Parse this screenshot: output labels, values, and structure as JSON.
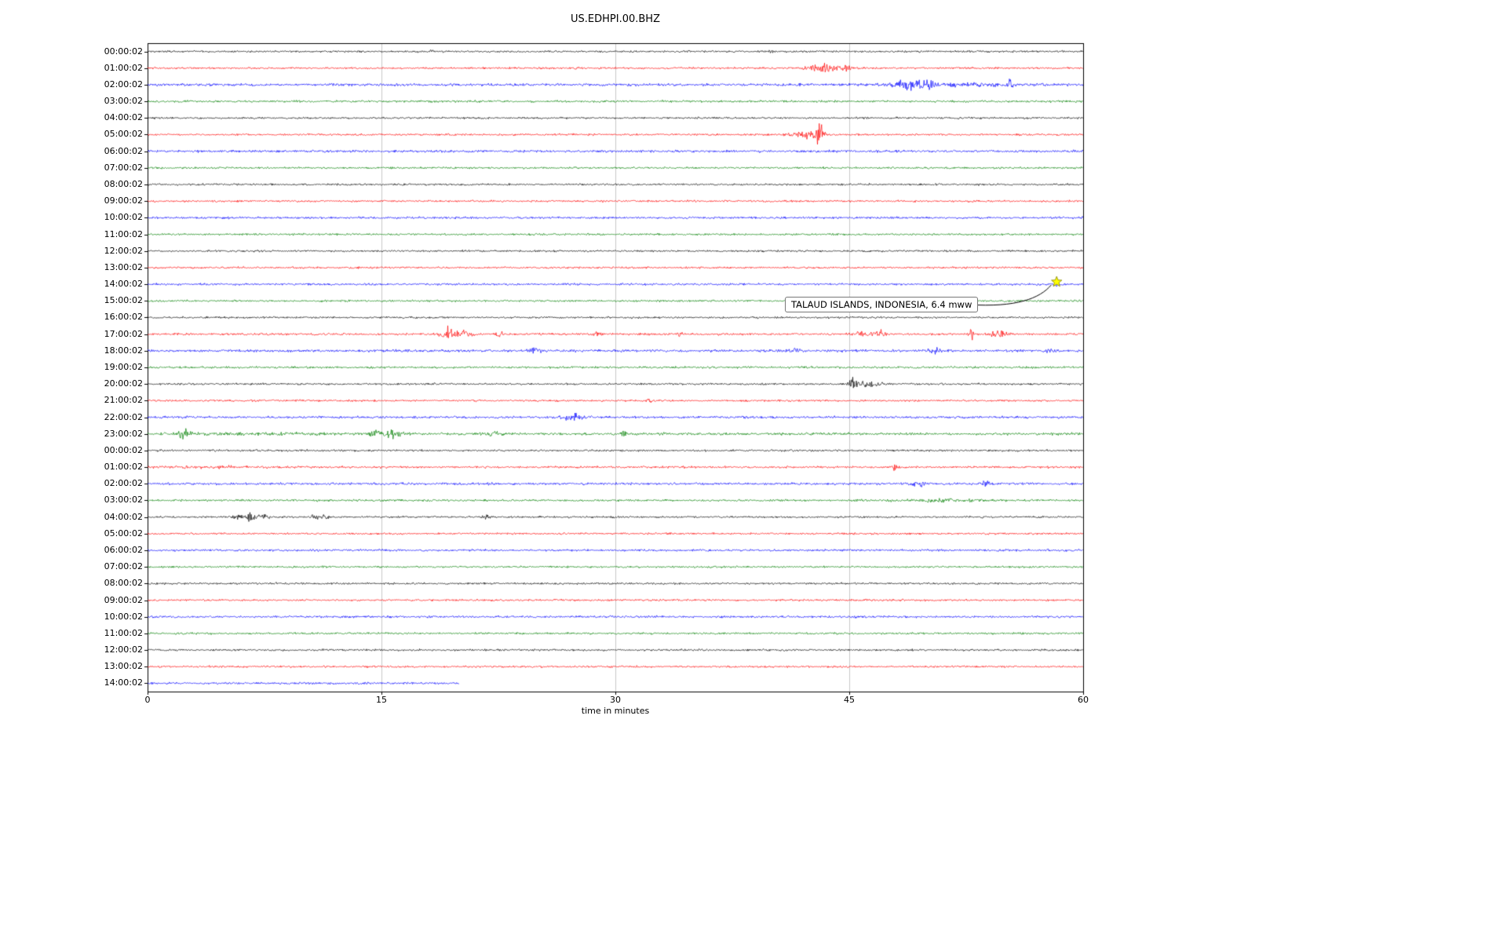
{
  "window": {
    "background": "#ffffff"
  },
  "chart_data": {
    "type": "line",
    "variant": "seismogram-dayplot",
    "title": "US.EDHPI.00.BHZ",
    "xlabel": "time in minutes",
    "xlim": [
      0,
      60
    ],
    "xticks": [
      0,
      15,
      30,
      45,
      60
    ],
    "grid_x": [
      15,
      30,
      45
    ],
    "grid_color": "#c8c8c8",
    "frame_color": "#000000",
    "color_cycle": [
      "#000000",
      "#ff0000",
      "#0000ff",
      "#008000"
    ],
    "annotation": {
      "text": "TALAUD ISLANDS, INDONESIA, 6.4 mww",
      "row_label": "14:00:02",
      "row_index": 14,
      "x_minutes": 58.3,
      "marker": "star-icon",
      "marker_color": "#ffff00",
      "marker_edge_color": "#808000"
    },
    "rows": [
      {
        "label": "00:00:02",
        "color": "#000000",
        "noise": 1.0,
        "events": [
          [
            18.2,
            0.15,
            2.5
          ],
          [
            40.0,
            0.12,
            1.8
          ]
        ]
      },
      {
        "label": "01:00:02",
        "color": "#ff0000",
        "noise": 1.0,
        "events": [
          [
            43.2,
            0.8,
            4.5
          ],
          [
            44.6,
            0.5,
            3.5
          ]
        ]
      },
      {
        "label": "02:00:02",
        "color": "#0000ff",
        "noise": 1.3,
        "events": [
          [
            48.9,
            0.9,
            4.0
          ],
          [
            50.0,
            0.4,
            2.5
          ],
          [
            52.0,
            4.0,
            0.8
          ],
          [
            55.3,
            0.15,
            5.5
          ]
        ]
      },
      {
        "label": "03:00:02",
        "color": "#008000",
        "noise": 1.1,
        "events": []
      },
      {
        "label": "04:00:02",
        "color": "#000000",
        "noise": 1.0,
        "events": []
      },
      {
        "label": "05:00:02",
        "color": "#ff0000",
        "noise": 1.0,
        "events": [
          [
            42.3,
            1.0,
            4.0
          ],
          [
            43.1,
            0.25,
            11.0
          ]
        ]
      },
      {
        "label": "06:00:02",
        "color": "#0000ff",
        "noise": 1.2,
        "events": []
      },
      {
        "label": "07:00:02",
        "color": "#008000",
        "noise": 1.0,
        "events": []
      },
      {
        "label": "08:00:02",
        "color": "#000000",
        "noise": 1.0,
        "events": []
      },
      {
        "label": "09:00:02",
        "color": "#ff0000",
        "noise": 1.0,
        "events": []
      },
      {
        "label": "10:00:02",
        "color": "#0000ff",
        "noise": 1.1,
        "events": []
      },
      {
        "label": "11:00:02",
        "color": "#008000",
        "noise": 1.0,
        "events": []
      },
      {
        "label": "12:00:02",
        "color": "#000000",
        "noise": 1.0,
        "events": []
      },
      {
        "label": "13:00:02",
        "color": "#ff0000",
        "noise": 1.0,
        "events": []
      },
      {
        "label": "14:00:02",
        "color": "#0000ff",
        "noise": 1.1,
        "events": [
          [
            58.3,
            0.3,
            1.8
          ]
        ]
      },
      {
        "label": "15:00:02",
        "color": "#008000",
        "noise": 1.0,
        "events": []
      },
      {
        "label": "16:00:02",
        "color": "#000000",
        "noise": 1.0,
        "events": []
      },
      {
        "label": "17:00:02",
        "color": "#ff0000",
        "noise": 1.1,
        "events": [
          [
            19.3,
            0.5,
            5.5
          ],
          [
            20.3,
            0.5,
            3.0
          ],
          [
            22.6,
            0.2,
            3.0
          ],
          [
            28.9,
            0.25,
            3.5
          ],
          [
            34.1,
            0.2,
            2.5
          ],
          [
            45.6,
            0.3,
            3.5
          ],
          [
            46.9,
            0.5,
            3.0
          ],
          [
            52.8,
            0.15,
            5.0
          ],
          [
            54.6,
            0.6,
            3.5
          ]
        ]
      },
      {
        "label": "18:00:02",
        "color": "#0000ff",
        "noise": 1.3,
        "events": [
          [
            24.8,
            0.4,
            2.2
          ],
          [
            41.5,
            0.4,
            1.8
          ],
          [
            50.6,
            0.5,
            2.0
          ],
          [
            57.9,
            0.15,
            4.5
          ]
        ]
      },
      {
        "label": "19:00:02",
        "color": "#008000",
        "noise": 1.1,
        "events": []
      },
      {
        "label": "20:00:02",
        "color": "#000000",
        "noise": 1.0,
        "events": [
          [
            45.2,
            0.3,
            7.0
          ],
          [
            46.2,
            0.8,
            3.0
          ]
        ]
      },
      {
        "label": "21:00:02",
        "color": "#ff0000",
        "noise": 1.0,
        "events": [
          [
            32.2,
            0.15,
            2.5
          ]
        ]
      },
      {
        "label": "22:00:02",
        "color": "#0000ff",
        "noise": 1.2,
        "events": [
          [
            27.3,
            0.6,
            4.0
          ]
        ]
      },
      {
        "label": "23:00:02",
        "color": "#008000",
        "noise": 1.3,
        "events": [
          [
            2.3,
            0.4,
            3.0
          ],
          [
            7.0,
            5.0,
            0.5
          ],
          [
            14.6,
            0.3,
            4.0
          ],
          [
            15.6,
            0.8,
            2.5
          ],
          [
            22.2,
            0.5,
            2.2
          ],
          [
            30.6,
            0.3,
            2.8
          ]
        ]
      },
      {
        "label": "00:00:02",
        "color": "#000000",
        "noise": 1.0,
        "events": []
      },
      {
        "label": "01:00:02",
        "color": "#ff0000",
        "noise": 1.1,
        "events": [
          [
            4.0,
            4.0,
            0.6
          ],
          [
            47.9,
            0.15,
            2.2
          ]
        ]
      },
      {
        "label": "02:00:02",
        "color": "#0000ff",
        "noise": 1.2,
        "events": [
          [
            49.4,
            0.5,
            2.2
          ],
          [
            53.8,
            0.4,
            3.0
          ]
        ]
      },
      {
        "label": "03:00:02",
        "color": "#008000",
        "noise": 1.1,
        "events": [
          [
            51.0,
            2.5,
            1.0
          ]
        ]
      },
      {
        "label": "04:00:02",
        "color": "#000000",
        "noise": 1.0,
        "events": [
          [
            5.8,
            0.3,
            3.5
          ],
          [
            6.6,
            0.4,
            4.5
          ],
          [
            7.4,
            0.3,
            3.0
          ],
          [
            11.0,
            0.5,
            3.0
          ],
          [
            21.8,
            0.3,
            1.8
          ]
        ]
      },
      {
        "label": "05:00:02",
        "color": "#ff0000",
        "noise": 1.0,
        "events": []
      },
      {
        "label": "06:00:02",
        "color": "#0000ff",
        "noise": 1.1,
        "events": []
      },
      {
        "label": "07:00:02",
        "color": "#008000",
        "noise": 1.0,
        "events": []
      },
      {
        "label": "08:00:02",
        "color": "#000000",
        "noise": 1.0,
        "events": []
      },
      {
        "label": "09:00:02",
        "color": "#ff0000",
        "noise": 1.0,
        "events": []
      },
      {
        "label": "10:00:02",
        "color": "#0000ff",
        "noise": 1.1,
        "events": []
      },
      {
        "label": "11:00:02",
        "color": "#008000",
        "noise": 1.0,
        "events": []
      },
      {
        "label": "12:00:02",
        "color": "#000000",
        "noise": 1.0,
        "events": []
      },
      {
        "label": "13:00:02",
        "color": "#ff0000",
        "noise": 1.0,
        "events": []
      },
      {
        "label": "14:00:02",
        "color": "#0000ff",
        "noise": 1.1,
        "end": 20,
        "events": []
      }
    ]
  }
}
